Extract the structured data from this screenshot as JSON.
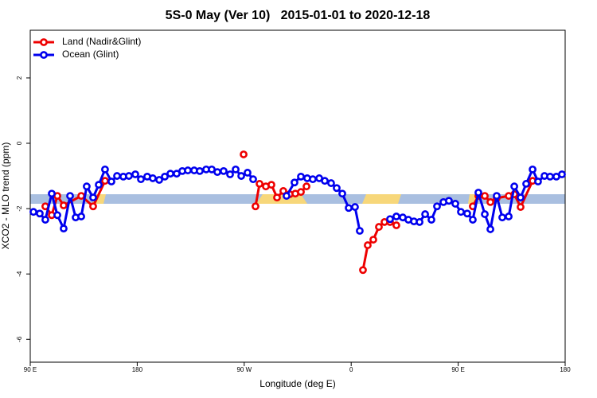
{
  "chart_data": {
    "type": "line",
    "title": "5S-0 May (Ver 10)   2015-01-01 to 2020-12-18",
    "xlabel": "Longitude (deg E)",
    "ylabel": "XCO2 - MLO trend (ppm)",
    "xlim": [
      90,
      540
    ],
    "ylim": [
      -6.7,
      3.46
    ],
    "xticks": [
      {
        "value": 90,
        "label": "90 E"
      },
      {
        "value": 180,
        "label": "180"
      },
      {
        "value": 270,
        "label": "90 W"
      },
      {
        "value": 360,
        "label": "0"
      },
      {
        "value": 450,
        "label": "90 E"
      },
      {
        "value": 540,
        "label": "180"
      }
    ],
    "yticks": [
      2,
      0,
      -2,
      -4,
      -6
    ],
    "legend": "top-left",
    "series": [
      {
        "name": "Land (Nadir&Glint)",
        "color": "#ee0000",
        "x": [
          102.7,
          108.1,
          112.8,
          118.1,
          132.9,
          142.9,
          152.9,
          null,
          269.5,
          null,
          279.5,
          282.9,
          288.2,
          292.9,
          297.6,
          302.9,
          308.3,
          313.0,
          317.7,
          322.4,
          null,
          369.9,
          373.9,
          378.6,
          383.3,
          388.0,
          392.7,
          398.0,
          null,
          462.3,
          467.0,
          472.4,
          477.1,
          482.4,
          492.5,
          497.2,
          502.5,
          512.6
        ],
        "values": [
          -1.93,
          -2.2,
          -1.61,
          -1.9,
          -1.61,
          -1.93,
          -1.15,
          null,
          -0.34,
          null,
          -1.93,
          -1.24,
          -1.32,
          -1.27,
          -1.66,
          -1.46,
          -1.56,
          -1.54,
          -1.49,
          -1.32,
          null,
          -3.88,
          -3.12,
          -2.95,
          -2.56,
          -2.41,
          -2.41,
          -2.51,
          null,
          -1.93,
          -1.61,
          -1.61,
          -1.8,
          -1.68,
          -1.61,
          -1.56,
          -1.95,
          -1.15
        ]
      },
      {
        "name": "Ocean (Glint)",
        "color": "#0000ee",
        "x": [
          92.7,
          98.0,
          102.7,
          108.1,
          112.8,
          118.1,
          123.5,
          128.2,
          132.9,
          137.5,
          142.9,
          147.6,
          152.9,
          158.3,
          163.0,
          168.3,
          173.0,
          178.4,
          183.1,
          188.4,
          193.1,
          198.5,
          203.2,
          207.9,
          213.2,
          217.9,
          222.6,
          227.9,
          232.6,
          238.0,
          242.7,
          247.4,
          252.7,
          258.1,
          262.8,
          267.5,
          272.8,
          277.5,
          null,
          305.6,
          312.3,
          317.7,
          323.0,
          327.7,
          333.1,
          337.8,
          343.1,
          347.8,
          352.5,
          357.9,
          363.2,
          367.2,
          null,
          392.7,
          398.0,
          403.4,
          408.1,
          412.8,
          417.5,
          422.2,
          427.5,
          432.2,
          437.6,
          442.2,
          447.6,
          452.3,
          457.6,
          462.3,
          467.0,
          472.4,
          477.1,
          482.4,
          487.1,
          492.5,
          497.2,
          502.5,
          507.2,
          512.6,
          517.2,
          522.6,
          527.3,
          532.6,
          537.3
        ],
        "values": [
          -2.1,
          -2.15,
          -2.34,
          -1.54,
          -2.2,
          -2.61,
          -1.61,
          -2.27,
          -2.24,
          -1.32,
          -1.66,
          -1.27,
          -0.8,
          -1.17,
          -1.0,
          -1.02,
          -1.0,
          -0.95,
          -1.1,
          -1.02,
          -1.07,
          -1.12,
          -1.02,
          -0.93,
          -0.93,
          -0.85,
          -0.83,
          -0.83,
          -0.85,
          -0.8,
          -0.8,
          -0.88,
          -0.85,
          -0.95,
          -0.8,
          -1.0,
          -0.9,
          -1.1,
          null,
          -1.61,
          -1.2,
          -1.02,
          -1.07,
          -1.1,
          -1.07,
          -1.15,
          -1.22,
          -1.37,
          -1.54,
          -1.98,
          -1.95,
          -2.68,
          null,
          -2.32,
          -2.24,
          -2.27,
          -2.34,
          -2.39,
          -2.41,
          -2.17,
          -2.34,
          -1.93,
          -1.8,
          -1.76,
          -1.85,
          -2.1,
          -2.15,
          -2.34,
          -1.51,
          -2.17,
          -2.63,
          -1.61,
          -2.27,
          -2.24,
          -1.32,
          -1.66,
          -1.24,
          -0.8,
          -1.17,
          -1.0,
          -1.02,
          -1.02,
          -0.95
        ]
      }
    ]
  }
}
